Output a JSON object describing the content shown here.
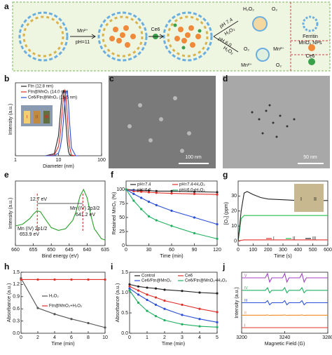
{
  "panel_labels": [
    "a",
    "b",
    "c",
    "d",
    "e",
    "f",
    "g",
    "h",
    "i",
    "j"
  ],
  "diagram": {
    "mn_label": "Mn²⁺",
    "ph_label": "pH=11",
    "ce6_label": "Ce6",
    "h2o2_top": "H₂O₂",
    "o2_top": "O₂",
    "ph74": "pH 7.4",
    "h2o2_a": "H₂O₂",
    "ph60": "pH 6.0",
    "h2o2_b": "H₂O₂",
    "o2_bottom_left": "O₂",
    "mn_bottom_right": "Mn²⁺",
    "mn_bottom_left": "Mn²⁺",
    "o2_bottom_right": "O₂",
    "legend": [
      "Ferritin",
      "MnO₂ NPs",
      "Ce6"
    ]
  },
  "images": {
    "c_scale": "100 nm",
    "d_scale": "50 nm"
  },
  "chart_data": [
    {
      "type": "line",
      "x_label": "Diameter (nm)",
      "y_label": "Intensity (a.u.)",
      "x_log": true,
      "xlim": [
        1,
        100
      ],
      "xticks": [
        1,
        10,
        100
      ],
      "ylim": [
        0,
        1.1
      ],
      "x": [
        5,
        8,
        10,
        11,
        12,
        13,
        14,
        15,
        16,
        17,
        18,
        20,
        25,
        30
      ],
      "series": [
        {
          "name": "Ftn (12.8 nm)",
          "color": "#222222",
          "values": [
            0,
            0.03,
            0.3,
            0.61,
            0.91,
            0.99,
            0.8,
            0.47,
            0.21,
            0.07,
            0.02,
            0,
            0,
            0
          ]
        },
        {
          "name": "Ftn@MnO₂ (14.0 nm)",
          "color": "#e0302a",
          "values": [
            0,
            0.01,
            0.14,
            0.32,
            0.61,
            0.88,
            1.0,
            0.88,
            0.61,
            0.32,
            0.14,
            0.01,
            0,
            0
          ]
        },
        {
          "name": "Ce6/Ftn@MnO₂ (15.5 nm)",
          "color": "#2a4fd8",
          "values": [
            0,
            0,
            0.04,
            0.12,
            0.28,
            0.52,
            0.79,
            0.97,
            0.97,
            0.79,
            0.52,
            0.12,
            0,
            0
          ]
        }
      ],
      "inset_labels": [
        "I",
        "II",
        "III"
      ]
    },
    {
      "type": "line",
      "x_label": "Bind energy (eV)",
      "y_label": "Intensity (a.u.)",
      "xlim": [
        660,
        635
      ],
      "xticks": [
        660,
        655,
        650,
        645,
        640,
        635
      ],
      "ylim": [
        0,
        1.15
      ],
      "x": [
        660,
        658,
        656,
        655,
        654,
        653,
        652,
        650,
        648,
        646,
        644,
        643,
        642,
        641,
        640,
        639,
        638,
        636,
        635
      ],
      "series": [
        {
          "name": "Mn 2p",
          "color": "#2aa02a",
          "values": [
            0.35,
            0.38,
            0.48,
            0.56,
            0.62,
            0.6,
            0.5,
            0.32,
            0.27,
            0.3,
            0.45,
            0.62,
            0.88,
            1.0,
            0.85,
            0.55,
            0.3,
            0.12,
            0.1
          ]
        }
      ],
      "annotations": [
        "12.7 eV",
        "Mn (IV) 2p1/2",
        "653.9 eV",
        "Mn (IV) 2p3/2",
        "641.2 eV"
      ],
      "hide_legend": true
    },
    {
      "type": "line",
      "x_label": "Time (min)",
      "y_label": "Retained MnO₂ (%)",
      "xlim": [
        0,
        120
      ],
      "xticks": [
        0,
        30,
        60,
        90,
        120
      ],
      "ylim": [
        0,
        115
      ],
      "yticks": [
        0,
        25,
        50,
        75,
        100
      ],
      "markers": true,
      "x": [
        0,
        10,
        20,
        30,
        40,
        60,
        90,
        120
      ],
      "series": [
        {
          "name": "pH=7.4",
          "color": "#222222",
          "values": [
            100,
            99,
            98,
            98,
            97,
            97,
            96,
            95
          ]
        },
        {
          "name": "pH=7.4+H₂O₂",
          "color": "#e0302a",
          "values": [
            100,
            97,
            96,
            95,
            94,
            93,
            92,
            91
          ]
        },
        {
          "name": "pH=6.0",
          "color": "#2a4fd8",
          "values": [
            100,
            92,
            85,
            78,
            72,
            62,
            50,
            38
          ]
        },
        {
          "name": "pH=6.0+H₂O₂",
          "color": "#20b060",
          "values": [
            100,
            80,
            65,
            52,
            45,
            35,
            22,
            12
          ]
        }
      ]
    },
    {
      "type": "line",
      "x_label": "Time (s)",
      "y_label": "[O₂] (ppm)",
      "xlim": [
        0,
        600
      ],
      "xticks": [
        0,
        100,
        200,
        300,
        400,
        500,
        600
      ],
      "ylim": [
        -3,
        40
      ],
      "yticks": [
        0,
        10,
        20,
        30
      ],
      "x": [
        0,
        20,
        40,
        60,
        100,
        150,
        200,
        300,
        400,
        500,
        600
      ],
      "series": [
        {
          "name": "I",
          "color": "#e0302a",
          "values": [
            0,
            0.5,
            0.8,
            0.8,
            0.8,
            0.8,
            0.8,
            0.8,
            0.8,
            0.8,
            0.8
          ]
        },
        {
          "name": "II",
          "color": "#20c050",
          "values": [
            0,
            15,
            17,
            17,
            17,
            17,
            17,
            17,
            17,
            17,
            17
          ]
        },
        {
          "name": "III",
          "color": "#222222",
          "values": [
            0,
            20,
            32,
            33,
            31,
            29,
            28,
            27.5,
            27,
            27,
            27
          ]
        }
      ],
      "inset_labels": [
        "I",
        "II"
      ]
    },
    {
      "type": "line",
      "x_label": "Time (min)",
      "y_label": "Absorbance (a.u.)",
      "xlim": [
        0,
        10
      ],
      "xticks": [
        0,
        2,
        4,
        6,
        8,
        10
      ],
      "ylim": [
        0,
        1.5
      ],
      "yticks": [
        {
          "value": 0,
          "label": "0.0"
        },
        0.3,
        0.6,
        0.9,
        1.2,
        1.5
      ],
      "markers": true,
      "x": [
        0,
        2,
        4,
        6,
        8,
        10
      ],
      "series": [
        {
          "name": "H₂O₂",
          "color": "#555555",
          "values": [
            1.35,
            0.62,
            0.47,
            0.35,
            0.25,
            0.14
          ]
        },
        {
          "name": "Ftn@MnO₂+H₂O₂",
          "color": "#e0302a",
          "values": [
            1.32,
            1.32,
            1.32,
            1.32,
            1.32,
            1.32
          ]
        }
      ]
    },
    {
      "type": "line",
      "x_label": "Time (min)",
      "y_label": "Absorbance (a.u.)",
      "xlim": [
        0,
        5
      ],
      "xticks": [
        0,
        1,
        2,
        3,
        4,
        5
      ],
      "ylim": [
        0,
        1.5
      ],
      "yticks": [
        {
          "value": 0,
          "label": "0.0"
        },
        0.5,
        {
          "value": 1,
          "label": "1.0"
        },
        1.5
      ],
      "markers": true,
      "x": [
        0,
        0.5,
        1,
        1.5,
        2,
        3,
        4,
        5
      ],
      "series": [
        {
          "name": "Control",
          "color": "#222222",
          "values": [
            1.2,
            1.15,
            1.12,
            1.1,
            1.07,
            1.04,
            1.0,
            0.98
          ]
        },
        {
          "name": "Ce6",
          "color": "#e0302a",
          "values": [
            1.15,
            1.05,
            0.95,
            0.88,
            0.8,
            0.7,
            0.6,
            0.52
          ]
        },
        {
          "name": "Ce6/Ftn@MnO₂",
          "color": "#2a4fd8",
          "values": [
            1.1,
            0.95,
            0.82,
            0.7,
            0.6,
            0.45,
            0.35,
            0.27
          ]
        },
        {
          "name": "Ce6/Ftn@MnO₂+H₂O₂",
          "color": "#20b060",
          "values": [
            1.05,
            0.75,
            0.55,
            0.42,
            0.32,
            0.22,
            0.17,
            0.15
          ]
        }
      ]
    },
    {
      "type": "line",
      "x_label": "Magnetic Field (G)",
      "y_label": "Intensity (a.u.)",
      "xlim": [
        3200,
        3280
      ],
      "xticks": [
        3200,
        3240,
        3280
      ],
      "offset_traces": true,
      "x": [
        3200,
        3222,
        3224,
        3226,
        3228,
        3238,
        3240,
        3242,
        3244,
        3254,
        3256,
        3258,
        3260,
        3280
      ],
      "series": [
        {
          "name": "I",
          "color": "#e0302a",
          "values": [
            0,
            0,
            0,
            0,
            0,
            0,
            0,
            0,
            0,
            0,
            0,
            0,
            0,
            0
          ]
        },
        {
          "name": "II",
          "color": "#f08a20",
          "values": [
            0,
            0,
            0.05,
            -0.05,
            0,
            0,
            0.05,
            -0.05,
            0,
            0,
            0.05,
            -0.05,
            0,
            0
          ]
        },
        {
          "name": "III",
          "color": "#2a4fd8",
          "values": [
            0,
            0,
            0.5,
            -0.5,
            0,
            0,
            0.5,
            -0.5,
            0,
            0,
            0.5,
            -0.5,
            0,
            0
          ]
        },
        {
          "name": "IV",
          "color": "#20b060",
          "values": [
            0,
            0,
            0.6,
            -0.6,
            0,
            0,
            0.6,
            -0.6,
            0,
            0,
            0.6,
            -0.6,
            0,
            0
          ]
        },
        {
          "name": "V",
          "color": "#a040c0",
          "values": [
            0,
            0,
            1,
            -1,
            0,
            0,
            1,
            -1,
            0,
            0,
            1,
            -1,
            0,
            0
          ]
        }
      ]
    }
  ]
}
